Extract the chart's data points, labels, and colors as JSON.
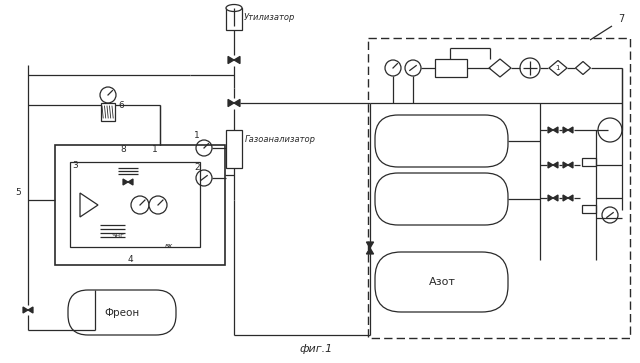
{
  "bg_color": "#ffffff",
  "line_color": "#2a2a2a",
  "title": "фиг.1",
  "labels": {
    "utilizator": "Утилизатор",
    "gazoanalizator": "Газоанализатор",
    "freon": "Фреон",
    "azot": "Азот",
    "num7": "7",
    "num1": "1",
    "num2": "2",
    "num3": "3",
    "num4": "4",
    "num5": "5",
    "num6": "6",
    "num8": "8"
  },
  "figsize": [
    6.4,
    3.63
  ],
  "dpi": 100
}
